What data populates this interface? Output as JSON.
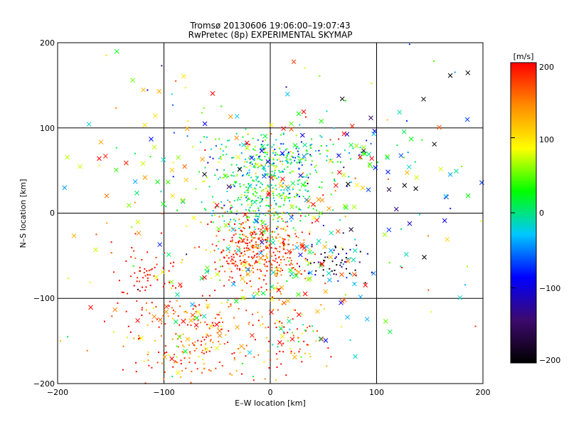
{
  "chart_data": {
    "type": "scatter",
    "title": "Tromsø 20130606 19:06:00–19:07:43",
    "subtitle": "RwPretec (8p) EXPERIMENTAL SKYMAP",
    "xlabel": "E–W location [km]",
    "ylabel": "N–S location [km]",
    "xlim": [
      -200,
      200
    ],
    "ylim": [
      -200,
      200
    ],
    "xticks": [
      "−200",
      "−100",
      "0",
      "100",
      "200"
    ],
    "yticks": [
      "−200",
      "−100",
      "0",
      "100",
      "200"
    ],
    "grid": true,
    "colorbar": {
      "label": "[m/s]",
      "range": [
        -200,
        200
      ],
      "ticks": [
        "200",
        "100",
        "0",
        "−100",
        "−200"
      ],
      "colors": [
        "#000000",
        "#3d0a6e",
        "#0000ff",
        "#00c8ff",
        "#00ff00",
        "#ffff00",
        "#ff8c00",
        "#ff0000"
      ]
    },
    "clusters": [
      {
        "marker": "dot",
        "cx": -5,
        "cy": 25,
        "sx": 25,
        "sy": 28,
        "v_mean": 20,
        "v_sd": 45,
        "count": 420
      },
      {
        "marker": "dot",
        "cx": 10,
        "cy": 70,
        "sx": 45,
        "sy": 12,
        "v_mean": -5,
        "v_sd": 55,
        "count": 170
      },
      {
        "marker": "dot",
        "cx": -10,
        "cy": -45,
        "sx": 22,
        "sy": 22,
        "v_mean": 175,
        "v_sd": 40,
        "count": 380
      },
      {
        "marker": "dot",
        "cx": -70,
        "cy": -140,
        "sx": 35,
        "sy": 30,
        "v_mean": 170,
        "v_sd": 45,
        "count": 220
      },
      {
        "marker": "dot",
        "cx": -120,
        "cy": -75,
        "sx": 12,
        "sy": 20,
        "v_mean": 195,
        "v_sd": 12,
        "count": 60
      },
      {
        "marker": "dot",
        "cx": 20,
        "cy": -150,
        "sx": 25,
        "sy": 30,
        "v_mean": 140,
        "v_sd": 70,
        "count": 80
      },
      {
        "marker": "dot",
        "cx": 60,
        "cy": -55,
        "sx": 18,
        "sy": 15,
        "v_mean": -150,
        "v_sd": 60,
        "count": 60
      },
      {
        "marker": "dot",
        "cx": 0,
        "cy": 0,
        "sx": 120,
        "sy": 120,
        "v_mean": 50,
        "v_sd": 110,
        "count": 140
      },
      {
        "marker": "x",
        "cx": 20,
        "cy": 40,
        "sx": 60,
        "sy": 50,
        "v_mean": 30,
        "v_sd": 110,
        "count": 120
      },
      {
        "marker": "x",
        "cx": 30,
        "cy": -80,
        "sx": 40,
        "sy": 40,
        "v_mean": 60,
        "v_sd": 120,
        "count": 60
      },
      {
        "marker": "x",
        "cx": -130,
        "cy": 40,
        "sx": 45,
        "sy": 55,
        "v_mean": 70,
        "v_sd": 90,
        "count": 45
      },
      {
        "marker": "x",
        "cx": 150,
        "cy": 60,
        "sx": 40,
        "sy": 60,
        "v_mean": -60,
        "v_sd": 110,
        "count": 40
      },
      {
        "marker": "x",
        "cx": -40,
        "cy": -120,
        "sx": 60,
        "sy": 40,
        "v_mean": 130,
        "v_sd": 70,
        "count": 60
      }
    ]
  }
}
